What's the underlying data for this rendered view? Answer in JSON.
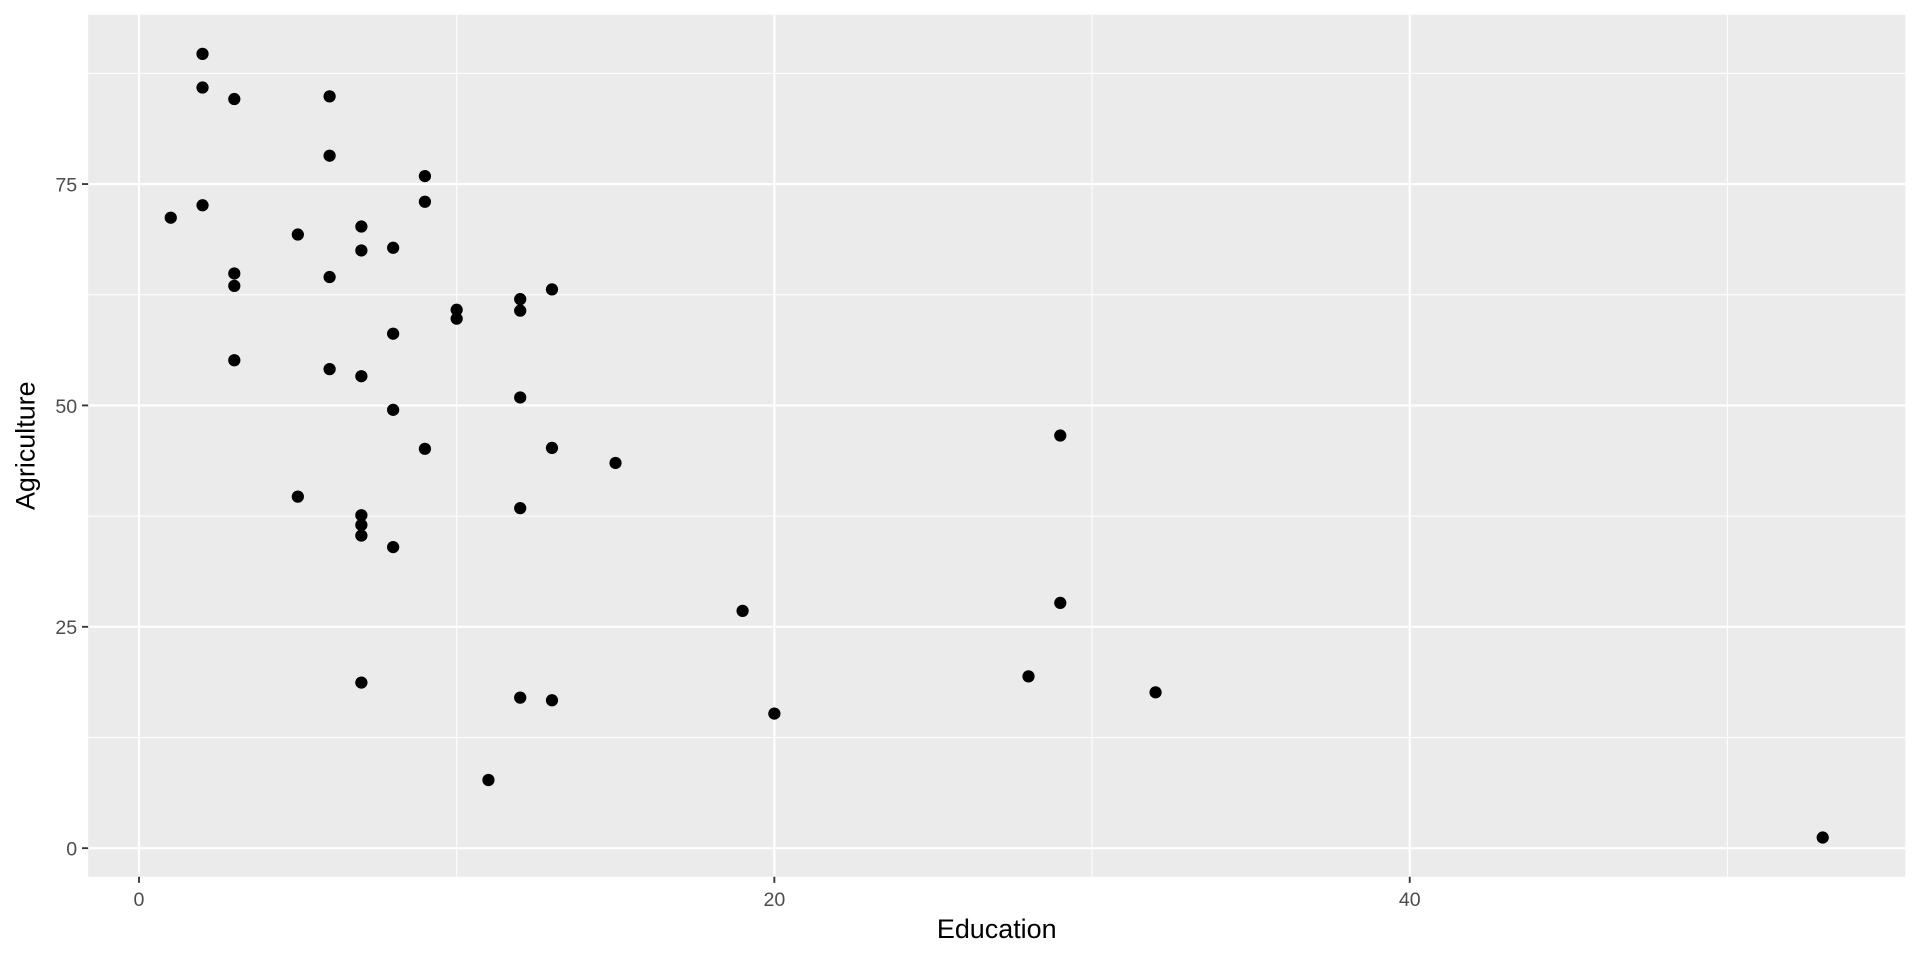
{
  "chart_data": {
    "type": "scatter",
    "x_label": "Education",
    "y_label": "Agriculture",
    "color": "#000000",
    "grid": true,
    "x": [
      12,
      9,
      5,
      7,
      15,
      7,
      7,
      8,
      7,
      13,
      6,
      12,
      7,
      12,
      5,
      2,
      8,
      28,
      20,
      9,
      10,
      3,
      12,
      6,
      1,
      8,
      3,
      10,
      19,
      8,
      2,
      6,
      2,
      6,
      3,
      9,
      3,
      13,
      12,
      11,
      13,
      32,
      7,
      7,
      53,
      29,
      29
    ],
    "values": [
      17.0,
      45.1,
      39.7,
      36.5,
      43.5,
      35.3,
      70.2,
      67.8,
      53.3,
      45.2,
      64.5,
      62.0,
      67.5,
      60.7,
      69.3,
      72.6,
      34.0,
      19.4,
      15.2,
      73.0,
      59.8,
      55.1,
      50.9,
      54.1,
      71.2,
      58.1,
      63.5,
      60.8,
      26.8,
      49.5,
      85.9,
      84.9,
      89.7,
      78.2,
      64.9,
      75.9,
      84.6,
      63.1,
      38.4,
      7.7,
      16.7,
      17.6,
      37.6,
      18.7,
      1.2,
      46.6,
      27.7
    ],
    "xlim": [
      -1.6,
      55.6
    ],
    "ylim": [
      -3.225,
      94.125
    ],
    "xticks": [
      0,
      20,
      40
    ],
    "yticks": [
      0,
      25,
      50,
      75
    ],
    "x_minor_ticks": [
      10,
      30,
      50
    ],
    "y_minor_ticks": [
      12.5,
      37.5,
      62.5,
      87.5
    ]
  }
}
